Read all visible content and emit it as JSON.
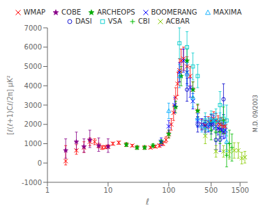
{
  "chart_data": {
    "type": "scatter",
    "xlabel": "ℓ",
    "ylabel": "[ℓ(ℓ+1)Cℓ/2π] μK²",
    "log": "x",
    "grid": false,
    "legend": "top",
    "annotations": [
      "M.D. 09/2003"
    ],
    "xlim": [
      1,
      2000
    ],
    "ylim": [
      -1000,
      7000
    ],
    "xticks": [
      1,
      10,
      100,
      500,
      1000,
      1500
    ],
    "yticks": [
      -1000,
      0,
      1000,
      2000,
      3000,
      4000,
      5000,
      6000,
      7000
    ],
    "series": [
      {
        "name": "WMAP",
        "color": "#ff0000",
        "marker": "x",
        "x": [
          2,
          3,
          4,
          5,
          6,
          7,
          8,
          9,
          10,
          12,
          15,
          20,
          25,
          30,
          40,
          50,
          60,
          70,
          80,
          90,
          100,
          110,
          120,
          130,
          140,
          150,
          160,
          175,
          200,
          225,
          250,
          300,
          350,
          400,
          450,
          500,
          550,
          600,
          650,
          700,
          750,
          800,
          850
        ],
        "values": [
          100,
          650,
          800,
          1100,
          1100,
          900,
          800,
          820,
          850,
          1000,
          1050,
          950,
          900,
          800,
          800,
          800,
          850,
          900,
          1000,
          1200,
          1500,
          2000,
          2600,
          3400,
          4100,
          4800,
          5300,
          5400,
          5000,
          4500,
          3800,
          2700,
          2000,
          1950,
          2100,
          2200,
          2300,
          2200,
          2100,
          2000,
          2000,
          1900,
          1900
        ],
        "yerr_lo": [
          200,
          200,
          250,
          200,
          150,
          120,
          100,
          80,
          80,
          80,
          80,
          70,
          60,
          60,
          60,
          60,
          70,
          80,
          100,
          150,
          200,
          300,
          400,
          500,
          600,
          600,
          600,
          600,
          500,
          500,
          400,
          300,
          250,
          250,
          300,
          300,
          350,
          350,
          350,
          350,
          350,
          350,
          350
        ],
        "yerr_hi": [
          800,
          300,
          300,
          200,
          150,
          120,
          100,
          80,
          80,
          80,
          80,
          70,
          60,
          60,
          60,
          60,
          70,
          80,
          100,
          150,
          200,
          300,
          400,
          500,
          600,
          600,
          600,
          600,
          500,
          500,
          400,
          300,
          250,
          250,
          300,
          300,
          350,
          350,
          350,
          350,
          350,
          350,
          350
        ]
      },
      {
        "name": "COBE",
        "color": "#880088",
        "marker": "star",
        "x": [
          2,
          3,
          4,
          5,
          7,
          10
        ],
        "values": [
          650,
          1100,
          850,
          1200,
          900,
          850
        ],
        "yerr_lo": [
          400,
          400,
          300,
          400,
          300,
          300
        ],
        "yerr_hi": [
          600,
          500,
          400,
          500,
          400,
          400
        ]
      },
      {
        "name": "ARCHEOPS",
        "color": "#00aa00",
        "marker": "star",
        "x": [
          20,
          30,
          40,
          55,
          75,
          100,
          130,
          160,
          200,
          250,
          300
        ],
        "values": [
          950,
          800,
          800,
          900,
          1100,
          1500,
          2900,
          4500,
          5300,
          3800,
          2700
        ],
        "yerr_lo": [
          100,
          100,
          100,
          100,
          100,
          200,
          300,
          500,
          600,
          400,
          350
        ],
        "yerr_hi": [
          100,
          100,
          100,
          100,
          100,
          200,
          300,
          500,
          600,
          400,
          350
        ]
      },
      {
        "name": "BOOMERANG",
        "color": "#0000ff",
        "marker": "x",
        "x": [
          75,
          100,
          125,
          150,
          175,
          200,
          225,
          250,
          300,
          350,
          400,
          450,
          500,
          550,
          600,
          650,
          700,
          750,
          800,
          850
        ],
        "values": [
          1100,
          1900,
          3000,
          4700,
          5300,
          4700,
          3900,
          3200,
          2200,
          2000,
          1900,
          1900,
          2000,
          2100,
          1900,
          1800,
          1700,
          1700,
          1600,
          1700
        ],
        "yerr_lo": [
          200,
          300,
          400,
          500,
          600,
          600,
          500,
          400,
          350,
          300,
          300,
          300,
          350,
          350,
          350,
          350,
          350,
          350,
          350,
          400
        ],
        "yerr_hi": [
          200,
          300,
          400,
          500,
          600,
          600,
          500,
          400,
          350,
          300,
          300,
          300,
          350,
          350,
          350,
          350,
          350,
          350,
          350,
          400
        ]
      },
      {
        "name": "MAXIMA",
        "color": "#00aaff",
        "marker": "triangle",
        "x": [
          100,
          150,
          200,
          250,
          300,
          350,
          400,
          450,
          500,
          550,
          600,
          700,
          800,
          900
        ],
        "values": [
          2700,
          4500,
          4600,
          3400,
          2300,
          1900,
          1800,
          2000,
          2200,
          2200,
          2200,
          2200,
          2100,
          1100
        ],
        "yerr_lo": [
          400,
          600,
          600,
          500,
          400,
          300,
          300,
          350,
          350,
          350,
          400,
          400,
          400,
          500
        ],
        "yerr_hi": [
          400,
          600,
          600,
          500,
          400,
          300,
          300,
          350,
          350,
          350,
          400,
          400,
          400,
          500
        ]
      },
      {
        "name": "DASI",
        "color": "#0000cc",
        "marker": "circle",
        "x": [
          200,
          300,
          400,
          500,
          600,
          700,
          800
        ],
        "values": [
          3800,
          2000,
          2000,
          2000,
          1200,
          1200,
          3300
        ],
        "yerr_lo": [
          600,
          400,
          400,
          500,
          500,
          600,
          800
        ],
        "yerr_hi": [
          600,
          400,
          400,
          500,
          500,
          600,
          800
        ]
      },
      {
        "name": "VSA",
        "color": "#00cccc",
        "marker": "square",
        "x": [
          150,
          200,
          250,
          300,
          400,
          500,
          600,
          700,
          800,
          900
        ],
        "values": [
          6200,
          6000,
          5000,
          4500,
          2200,
          2200,
          2200,
          3000,
          2300,
          2200
        ],
        "yerr_lo": [
          800,
          800,
          700,
          600,
          400,
          500,
          600,
          700,
          700,
          800
        ],
        "yerr_hi": [
          800,
          800,
          700,
          600,
          400,
          500,
          600,
          700,
          700,
          800
        ]
      },
      {
        "name": "CBI",
        "color": "#00bb00",
        "marker": "plus",
        "x": [
          500,
          600,
          700,
          800,
          900,
          1000,
          1100
        ],
        "values": [
          1700,
          1600,
          1600,
          2200,
          400,
          1000,
          800
        ],
        "yerr_lo": [
          500,
          500,
          600,
          700,
          600,
          700,
          700
        ],
        "yerr_hi": [
          500,
          500,
          600,
          700,
          600,
          700,
          700
        ]
      },
      {
        "name": "ACBAR",
        "color": "#88cc00",
        "marker": "x",
        "x": [
          400,
          600,
          800,
          1000,
          1200,
          1400,
          1600,
          1800
        ],
        "values": [
          1400,
          600,
          600,
          600,
          650,
          650,
          250,
          300
        ],
        "yerr_lo": [
          400,
          300,
          300,
          400,
          400,
          400,
          300,
          300
        ],
        "yerr_hi": [
          400,
          300,
          300,
          400,
          400,
          400,
          300,
          300
        ]
      }
    ]
  }
}
